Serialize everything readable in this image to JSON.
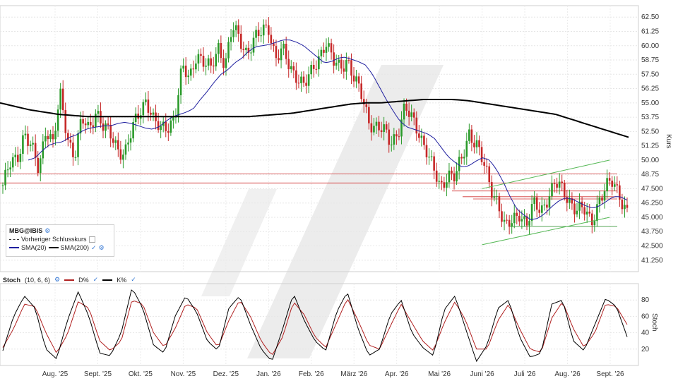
{
  "chart_data": [
    {
      "type": "candlestick",
      "symbol": "MBG@IBIS",
      "ylabel": "Kurs",
      "ylim": [
        40.25,
        63.5
      ],
      "y_ticks": [
        "62.50",
        "61.25",
        "60.00",
        "58.75",
        "57.50",
        "56.25",
        "55.00",
        "53.75",
        "52.50",
        "51.25",
        "50.00",
        "48.75",
        "47.500",
        "46.250",
        "45.000",
        "43.750",
        "42.500",
        "41.250"
      ],
      "y_tick_values": [
        62.5,
        61.25,
        60.0,
        58.75,
        57.5,
        56.25,
        55.0,
        53.75,
        52.5,
        51.25,
        50.0,
        48.75,
        47.5,
        46.25,
        45.0,
        43.75,
        42.5,
        41.25
      ],
      "x_ticks": [
        "Aug. '25",
        "Sept. '25",
        "Okt. '25",
        "Nov. '25",
        "Dez. '25",
        "Jan. '26",
        "Feb. '26",
        "März '26",
        "Apr. '26",
        "Mai '26",
        "Juni '26",
        "Juli '26",
        "Aug. '26",
        "Sept. '26"
      ],
      "legend": [
        {
          "label": "Vorheriger Schlusskurs",
          "style": "dashed"
        },
        {
          "label": "SMA(20)",
          "color": "#1f1f9f"
        },
        {
          "label": "SMA(200)",
          "color": "#000000"
        }
      ],
      "close_path": [
        47.8,
        49.5,
        50.2,
        52.5,
        51.0,
        49.0,
        53.0,
        51.5,
        55.5,
        52.0,
        50.5,
        53.5,
        52.5,
        54.5,
        53.0,
        52.0,
        51.0,
        50.8,
        52.5,
        54.0,
        55.5,
        53.5,
        52.5,
        53.0,
        54.0,
        58.0,
        57.0,
        59.5,
        58.5,
        57.8,
        60.0,
        58.5,
        61.5,
        60.5,
        59.5,
        60.5,
        61.0,
        61.8,
        59.0,
        59.5,
        58.0,
        57.5,
        56.5,
        57.5,
        59.0,
        60.5,
        58.5,
        58.0,
        59.0,
        57.0,
        55.5,
        53.5,
        53.0,
        52.5,
        51.5,
        52.5,
        54.5,
        53.5,
        52.5,
        51.0,
        49.0,
        47.5,
        49.0,
        48.5,
        50.0,
        52.5,
        51.5,
        49.5,
        47.5,
        46.5,
        44.0,
        44.5,
        45.5,
        44.5,
        46.0,
        45.5,
        47.0,
        48.0,
        47.2,
        46.5,
        45.8,
        45.5,
        44.5,
        46.5,
        47.5,
        48.0,
        47.0,
        45.5
      ],
      "sma20_path": [
        50.0,
        50.2,
        50.8,
        51.3,
        51.5,
        51.6,
        52.0,
        52.2,
        52.6,
        52.8,
        52.9,
        53.0,
        53.0,
        53.2,
        53.3,
        53.2,
        53.0,
        52.8,
        52.7,
        52.9,
        53.4,
        53.8,
        54.0,
        54.2,
        54.5,
        55.3,
        56.0,
        56.8,
        57.5,
        57.9,
        58.5,
        58.9,
        59.5,
        59.9,
        60.0,
        60.1,
        60.3,
        60.5,
        60.5,
        60.3,
        60.0,
        59.5,
        59.0,
        58.5,
        58.6,
        58.9,
        59.0,
        58.8,
        58.6,
        58.3,
        57.5,
        56.4,
        55.3,
        54.3,
        53.4,
        52.9,
        52.7,
        52.5,
        52.3,
        51.9,
        51.1,
        50.3,
        49.8,
        49.4,
        49.5,
        49.9,
        50.2,
        50.0,
        49.2,
        48.1,
        46.8,
        45.7,
        45.2,
        44.8,
        44.9,
        45.3,
        45.9,
        46.4,
        46.7,
        46.6,
        46.3,
        46.0,
        45.8,
        46.0,
        46.4,
        46.8,
        46.8,
        46.5
      ],
      "sma200_path": [
        55.0,
        54.7,
        54.4,
        54.2,
        54.0,
        53.9,
        53.8,
        53.8,
        53.8,
        53.8,
        53.8,
        53.8,
        53.8,
        53.8,
        53.8,
        53.8,
        53.8,
        53.8,
        53.9,
        54.0,
        54.1,
        54.3,
        54.5,
        54.7,
        54.9,
        55.0,
        55.0,
        55.1,
        55.2,
        55.3,
        55.3,
        55.3,
        55.2,
        55.0,
        54.8,
        54.6,
        54.4,
        54.2,
        54.0,
        53.6,
        53.2,
        52.8,
        52.4,
        52.0
      ],
      "horizontal_levels": [
        48.8,
        48.0,
        47.3,
        46.8,
        46.6,
        44.2
      ],
      "trendlines": [
        {
          "from": [
            0.755,
            42.6
          ],
          "to": [
            0.955,
            45.0
          ]
        },
        {
          "from": [
            0.755,
            47.5
          ],
          "to": [
            0.955,
            50.0
          ]
        }
      ]
    },
    {
      "type": "line",
      "title": "Stoch",
      "params": "(10, 6, 6)",
      "ylabel": "Stoch",
      "ylim": [
        0,
        100
      ],
      "y_ticks": [
        "80",
        "60",
        "40",
        "20"
      ],
      "y_tick_values": [
        80,
        60,
        40,
        20
      ],
      "series": [
        {
          "name": "D%",
          "color": "#b02020"
        },
        {
          "name": "K%",
          "color": "#000000"
        }
      ],
      "k_path": [
        18,
        60,
        85,
        70,
        20,
        8,
        55,
        90,
        60,
        15,
        12,
        40,
        95,
        70,
        25,
        15,
        60,
        85,
        65,
        30,
        18,
        70,
        85,
        50,
        20,
        5,
        45,
        88,
        55,
        30,
        18,
        65,
        90,
        45,
        12,
        20,
        62,
        80,
        40,
        22,
        12,
        68,
        85,
        45,
        5,
        25,
        70,
        80,
        35,
        10,
        15,
        75,
        80,
        30,
        18,
        50,
        82,
        72,
        35
      ],
      "d_path": [
        22,
        45,
        75,
        72,
        40,
        15,
        38,
        78,
        70,
        30,
        18,
        30,
        80,
        75,
        40,
        22,
        45,
        75,
        70,
        40,
        22,
        55,
        80,
        60,
        30,
        12,
        35,
        78,
        62,
        35,
        22,
        52,
        82,
        55,
        25,
        20,
        48,
        75,
        52,
        30,
        18,
        52,
        78,
        55,
        20,
        20,
        55,
        75,
        45,
        20,
        16,
        58,
        78,
        45,
        22,
        40,
        75,
        72,
        50
      ]
    }
  ],
  "ui": {
    "symbol_label": "MBG@IBIS",
    "prev_close_label": "Vorheriger Schlusskurs",
    "sma20_label": "SMA(20)",
    "sma200_label": "SMA(200)",
    "stoch_title": "Stoch",
    "stoch_params": "(10, 6, 6)",
    "d_label": "D%",
    "k_label": "K%",
    "price_axis_label": "Kurs",
    "stoch_axis_label": "Stoch"
  }
}
